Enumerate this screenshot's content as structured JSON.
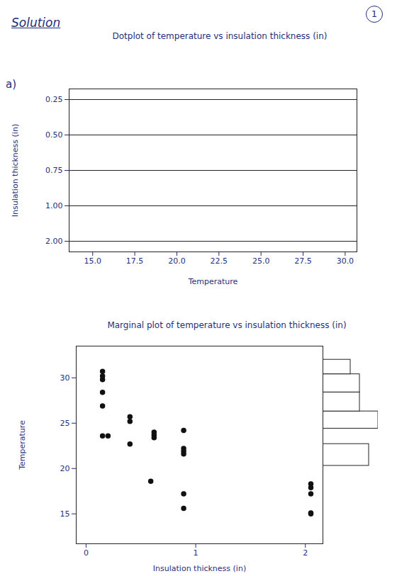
{
  "page_number": "1",
  "heading": "Solution",
  "part": "a)",
  "chart_data": [
    {
      "type": "dot",
      "title": "Dotplot of temperature vs insulation thickness (in)",
      "xlabel": "Temperature",
      "ylabel": "Insulation thickness (in)",
      "categories": [
        "0.25",
        "0.50",
        "0.75",
        "1.00",
        "2.00"
      ],
      "xlim": [
        13.6,
        30.7
      ],
      "xticks": [
        {
          "value": 15,
          "label": "15.0"
        },
        {
          "value": 17.5,
          "label": "17.5"
        },
        {
          "value": 20,
          "label": "20.0"
        },
        {
          "value": 22.5,
          "label": "22.5"
        },
        {
          "value": 25,
          "label": "25.0"
        },
        {
          "value": 27.5,
          "label": "27.5"
        },
        {
          "value": 30,
          "label": "30.0"
        }
      ],
      "grid": true,
      "color": "#222222"
    },
    {
      "type": "scatter",
      "title": "Marginal plot of temperature vs insulation thickness (in)",
      "xlabel": "Insulation thickness (in)",
      "ylabel": "Temperature",
      "x": [
        0.15,
        0.15,
        0.15,
        0.15,
        0.15,
        0.15,
        0.2,
        0.4,
        0.4,
        0.4,
        0.62,
        0.62,
        0.62,
        0.59,
        0.89,
        0.89,
        0.89,
        0.89,
        0.89,
        0.89,
        2.05,
        2.05,
        2.05,
        2.05,
        2.05
      ],
      "values": [
        30.7,
        30.2,
        29.8,
        28.4,
        26.9,
        23.6,
        23.6,
        25.7,
        25.2,
        22.7,
        24.0,
        23.7,
        23.4,
        18.6,
        24.2,
        22.2,
        21.9,
        21.6,
        17.2,
        15.6,
        18.3,
        17.9,
        17.2,
        15.1,
        15.0
      ],
      "xlim": [
        -0.09,
        2.16
      ],
      "xticks": [
        0,
        1,
        2
      ],
      "ylim": [
        11.7,
        33.5
      ],
      "yticks": [
        15,
        20,
        25,
        30
      ],
      "color": "#111111",
      "marker": "circle",
      "histogram": {
        "bins": [
          20.3,
          22.7,
          24.4,
          26.3,
          28.4,
          30.4,
          32.0
        ],
        "counts": [
          5,
          0,
          6,
          4,
          4,
          3
        ]
      }
    }
  ]
}
